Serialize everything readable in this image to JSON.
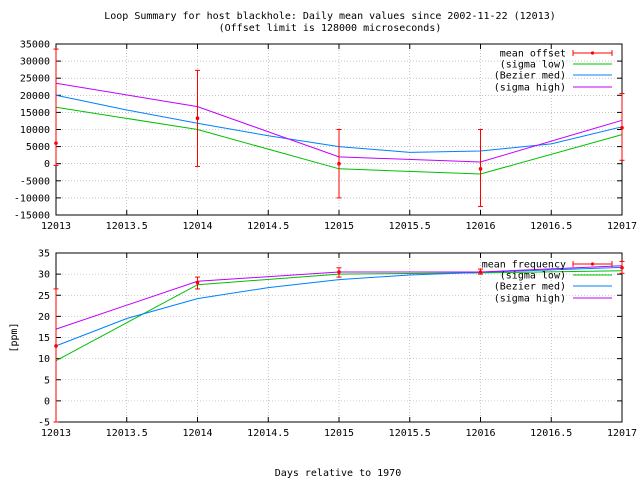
{
  "title_line1": "Loop Summary for host blackhole: Daily mean values since 2002-11-22 (12013)",
  "title_line2": "(Offset limit is 128000 microseconds)",
  "xlabel": "Days relative to 1970",
  "colors": {
    "offset_err": "#ff0000",
    "sigma_low": "#00c000",
    "bezier": "#0080ff",
    "sigma_high": "#c000ff"
  },
  "chart_data": [
    {
      "type": "line",
      "x": [
        12013,
        12014,
        12015,
        12016,
        12017
      ],
      "xlim": [
        12013,
        12017
      ],
      "ylim": [
        -15000,
        35000
      ],
      "xticks": [
        "12013",
        "12013.5",
        "12014",
        "12014.5",
        "12015",
        "12015.5",
        "12016",
        "12016.5",
        "12017"
      ],
      "yticks": [
        "35000",
        "30000",
        "25000",
        "20000",
        "15000",
        "10000",
        "5000",
        "0",
        "-5000",
        "-10000",
        "-15000"
      ],
      "ylabel": "",
      "legend": [
        "mean offset",
        "(sigma low)",
        "(Bezier med)",
        "(sigma high)"
      ],
      "errorbar": {
        "x": [
          12013,
          12014,
          12015,
          12016,
          12017
        ],
        "y": [
          6000,
          13300,
          0,
          -1500,
          10500
        ],
        "lo": [
          -500,
          -800,
          -10000,
          -12500,
          1000
        ],
        "hi": [
          33500,
          27300,
          10000,
          10000,
          20500
        ]
      },
      "sigma_low": {
        "x": [
          12013,
          12014,
          12015,
          12016,
          12017
        ],
        "y": [
          16500,
          10000,
          -1500,
          -3000,
          8500
        ]
      },
      "bezier": {
        "x": [
          12013,
          12013.5,
          12014,
          12014.5,
          12015,
          12015.5,
          12016,
          12016.5,
          12017
        ],
        "y": [
          20000,
          15700,
          11800,
          8200,
          5000,
          3300,
          3700,
          5800,
          10800
        ]
      },
      "sigma_high": {
        "x": [
          12013,
          12014,
          12015,
          12016,
          12017
        ],
        "y": [
          23500,
          16700,
          2000,
          500,
          12700
        ]
      }
    },
    {
      "type": "line",
      "x": [
        12013,
        12014,
        12015,
        12016,
        12017
      ],
      "xlim": [
        12013,
        12017
      ],
      "ylim": [
        -5,
        35
      ],
      "xticks": [
        "12013",
        "12013.5",
        "12014",
        "12014.5",
        "12015",
        "12015.5",
        "12016",
        "12016.5",
        "12017"
      ],
      "yticks": [
        "35",
        "30",
        "25",
        "20",
        "15",
        "10",
        "5",
        "0",
        "-5"
      ],
      "ylabel": "[ppm]",
      "legend": [
        "mean frequency",
        "(sigma low)",
        "(Bezier med)",
        "(sigma high)"
      ],
      "errorbar": {
        "x": [
          12013,
          12014,
          12015,
          12016,
          12017
        ],
        "y": [
          13,
          28,
          30.5,
          30.5,
          31.5
        ],
        "lo": [
          -5,
          26.5,
          29.3,
          30,
          30.2
        ],
        "hi": [
          26.5,
          29.3,
          31.5,
          31.2,
          33
        ]
      },
      "sigma_low": {
        "x": [
          12013,
          12014,
          12015,
          12016,
          12017
        ],
        "y": [
          9.5,
          27.5,
          30,
          30.3,
          30.8
        ]
      },
      "bezier": {
        "x": [
          12013,
          12013.5,
          12014,
          12014.5,
          12015,
          12015.5,
          12016,
          12016.5,
          12017
        ],
        "y": [
          13,
          19.5,
          24.2,
          26.8,
          28.7,
          29.8,
          30.4,
          31,
          31.6
        ]
      },
      "sigma_high": {
        "x": [
          12013,
          12014,
          12015,
          12016,
          12017
        ],
        "y": [
          17,
          28.3,
          30.5,
          30.5,
          32
        ]
      }
    }
  ]
}
